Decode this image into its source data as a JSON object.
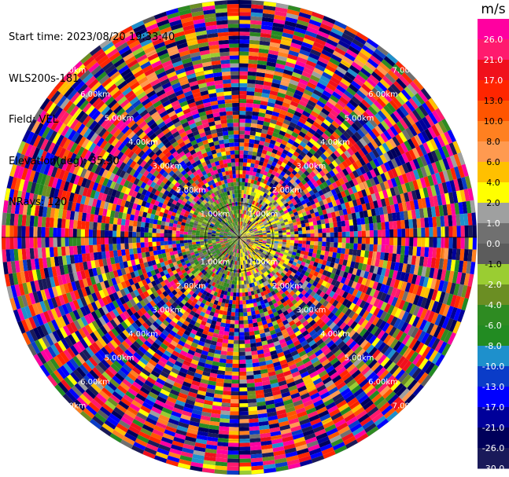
{
  "info": {
    "start_time": "Start time: 2023/08/20 19:33:40",
    "instrument": "WLS200s-181",
    "field": "Field: VEL",
    "elevation": "Elevation(deg): 35.30",
    "nrays": "NRays: 120"
  },
  "chart_data": {
    "type": "heatmap",
    "projection": "polar-ppi",
    "nrays": 120,
    "range_rings_km": [
      1.0,
      2.0,
      3.0,
      4.0,
      5.0,
      6.0,
      7.0
    ],
    "range_ring_labels": [
      "1.00km",
      "2.00km",
      "3.00km",
      "4.00km",
      "5.00km",
      "6.00km",
      "7.00km"
    ],
    "max_range_km": 7.0,
    "colorbar": {
      "unit": "m/s",
      "range": [
        -30.0,
        30.0
      ],
      "tick_labels": [
        "26.0",
        "21.0",
        "17.0",
        "13.0",
        "10.0",
        "8.0",
        "6.0",
        "4.0",
        "2.0",
        "1.0",
        "0.0",
        "-1.0",
        "-2.0",
        "-4.0",
        "-6.0",
        "-8.0",
        "-10.0",
        "-13.0",
        "-17.0",
        "-21.0",
        "-26.0",
        "-30.0"
      ],
      "bounds": [
        30,
        26,
        21,
        17,
        13,
        10,
        8,
        6,
        4,
        2,
        1,
        0,
        -1,
        -2,
        -4,
        -6,
        -8,
        -10,
        -13,
        -17,
        -21,
        -26,
        -30
      ],
      "colors": [
        "#ff00a0",
        "#ff1a6e",
        "#f0101c",
        "#ff2500",
        "#ff5500",
        "#ff8020",
        "#ff9a50",
        "#ffc000",
        "#ffff00",
        "#9fa0a0",
        "#707070",
        "#5c5c5c",
        "#9acd32",
        "#6b8e23",
        "#2e8b22",
        "#228b22",
        "#1e90cc",
        "#0a3cc8",
        "#0000ff",
        "#00009a",
        "#00005a",
        "#1a1a5a"
      ]
    }
  }
}
